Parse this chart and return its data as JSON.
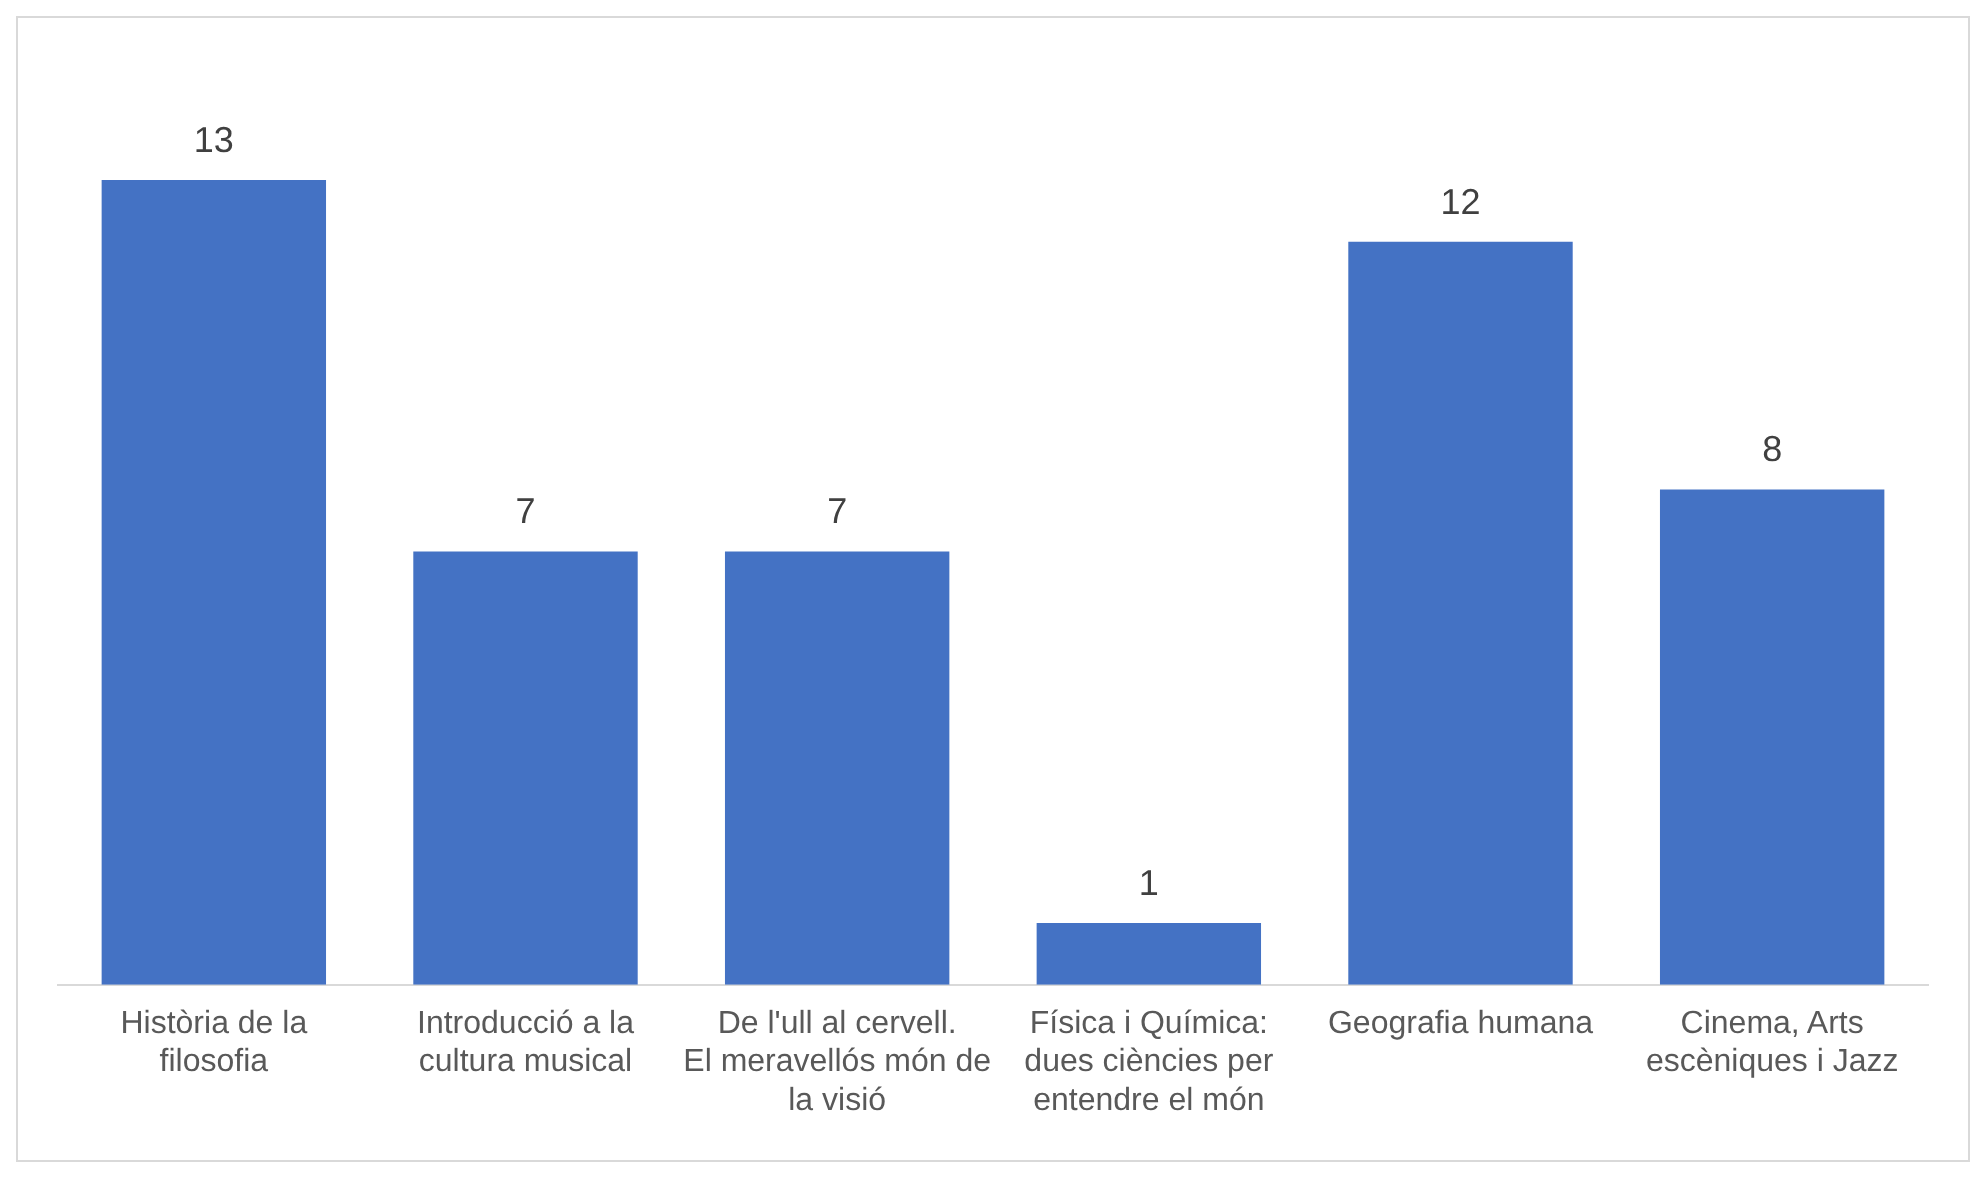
{
  "chart_data": {
    "type": "bar",
    "categories": [
      "Història de la filosofia",
      "Introducció a la cultura musical",
      "De l'ull al cervell. El meravellós món de la visió",
      "Física i Química: dues ciències per entendre el món",
      "Geografia humana",
      "Cinema, Arts escèniques i Jazz"
    ],
    "values": [
      13,
      7,
      7,
      1,
      12,
      8
    ],
    "color": "#4472c4",
    "data_labels": true,
    "grid": false,
    "legend": false
  }
}
